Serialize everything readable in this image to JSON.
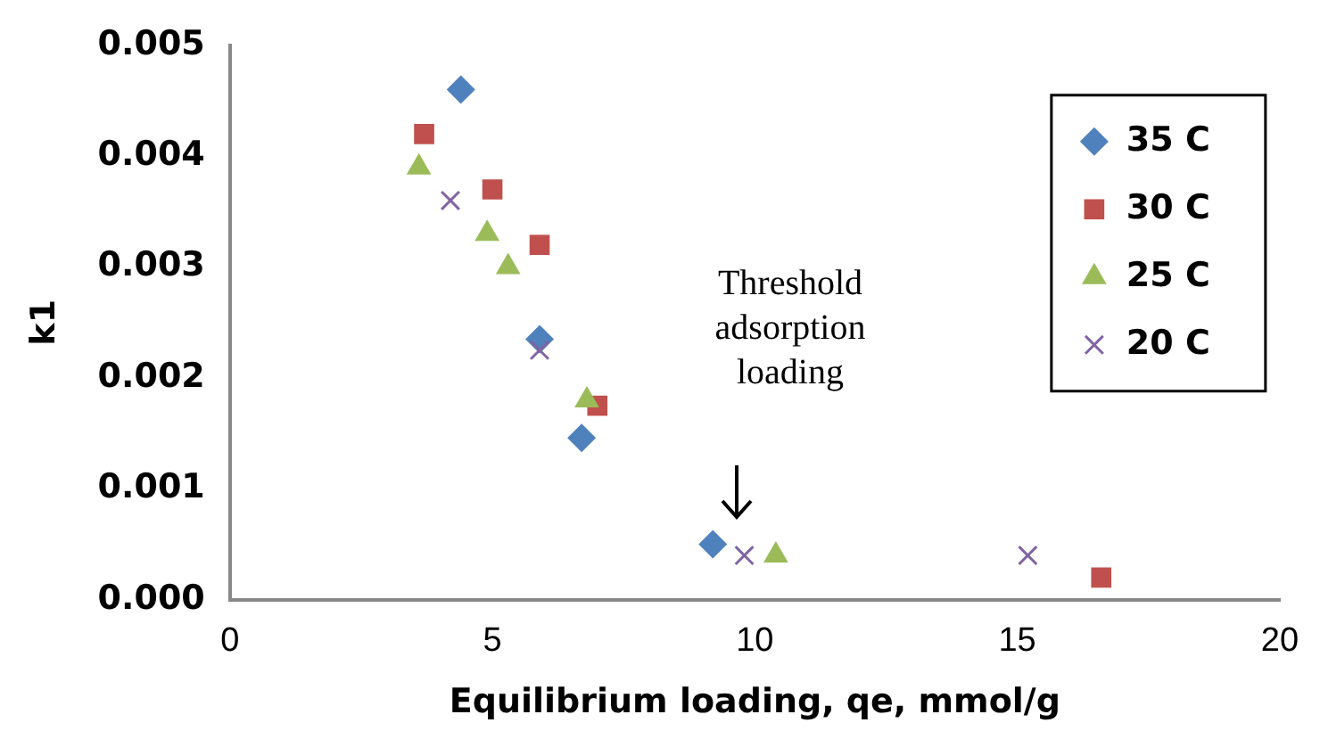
{
  "chart_data": {
    "type": "scatter",
    "xlabel": "Equilibrium loading, qe, mmol/g",
    "ylabel": "k1",
    "xlim": [
      0,
      20
    ],
    "xticks": [
      0,
      5,
      10,
      15,
      20
    ],
    "ylim": [
      0,
      0.005
    ],
    "yticks": [
      {
        "value": 0,
        "label": "0.000"
      },
      0.001,
      0.002,
      0.003,
      0.004,
      0.005
    ],
    "grid": false,
    "legend": "top right",
    "series": [
      {
        "name": "35 C",
        "color": "#4f81bd",
        "marker": "diamond",
        "x": [
          4.4,
          5.9,
          6.7,
          9.2
        ],
        "values": [
          0.0046,
          0.00235,
          0.00146,
          0.0005
        ]
      },
      {
        "name": "30 C",
        "color": "#c0504d",
        "marker": "square",
        "x": [
          3.7,
          5.0,
          5.9,
          7.0,
          16.6
        ],
        "values": [
          0.0042,
          0.0037,
          0.0032,
          0.00175,
          0.0002
        ]
      },
      {
        "name": "25 C",
        "color": "#9bbb59",
        "marker": "triangle",
        "x": [
          3.6,
          4.9,
          5.3,
          6.8,
          10.4
        ],
        "values": [
          0.0039,
          0.0033,
          0.003,
          0.0018,
          0.0004
        ]
      },
      {
        "name": "20 C",
        "color": "#8064a2",
        "marker": "cross",
        "x": [
          4.2,
          5.9,
          9.8,
          15.2
        ],
        "values": [
          0.0036,
          0.00225,
          0.0004,
          0.0004
        ]
      }
    ],
    "annotations": [
      "Threshold adsorption loading"
    ]
  }
}
